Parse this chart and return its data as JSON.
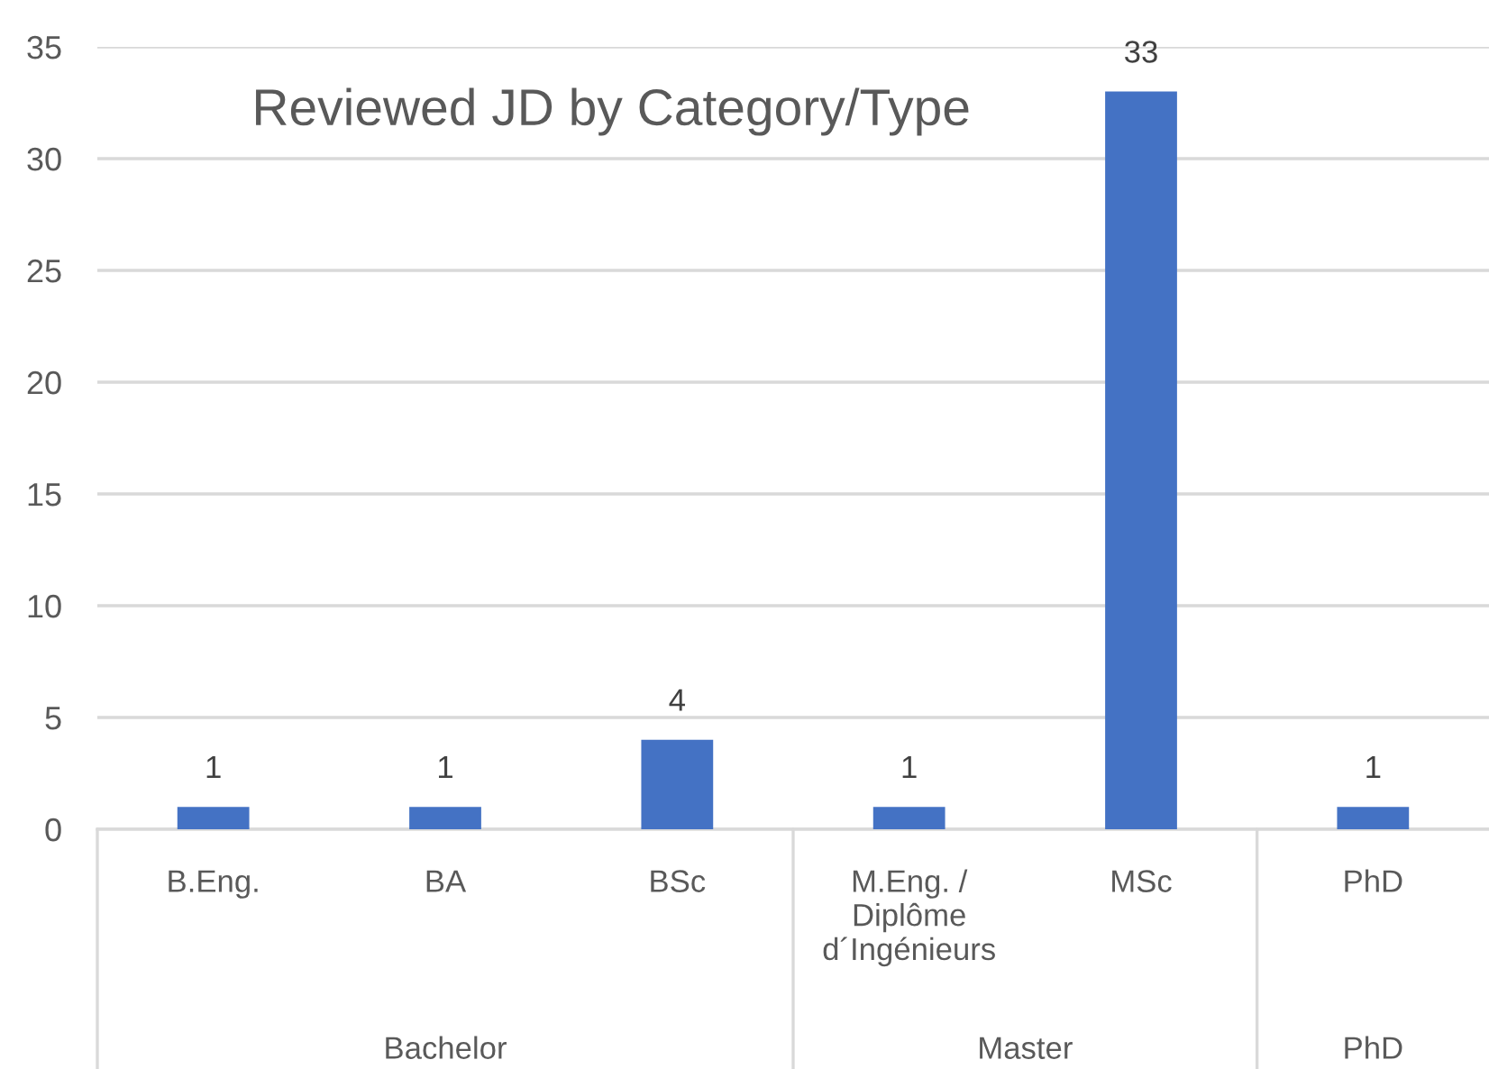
{
  "chart_data": {
    "type": "bar",
    "title": "Reviewed JD by Category/Type",
    "categories": [
      "B.Eng.",
      "BA",
      "BSc",
      "M.Eng. /\nDiplôme\nd´Ingénieurs",
      "MSc",
      "PhD"
    ],
    "values": [
      1,
      1,
      4,
      1,
      33,
      1
    ],
    "color": "#4472c4",
    "ylim": [
      0,
      35
    ],
    "yticks": [
      0,
      5,
      10,
      15,
      20,
      25,
      30,
      35
    ],
    "grid": "y",
    "data_labels": true,
    "annotations": [
      "Bachelor",
      "Master",
      "PhD"
    ]
  }
}
